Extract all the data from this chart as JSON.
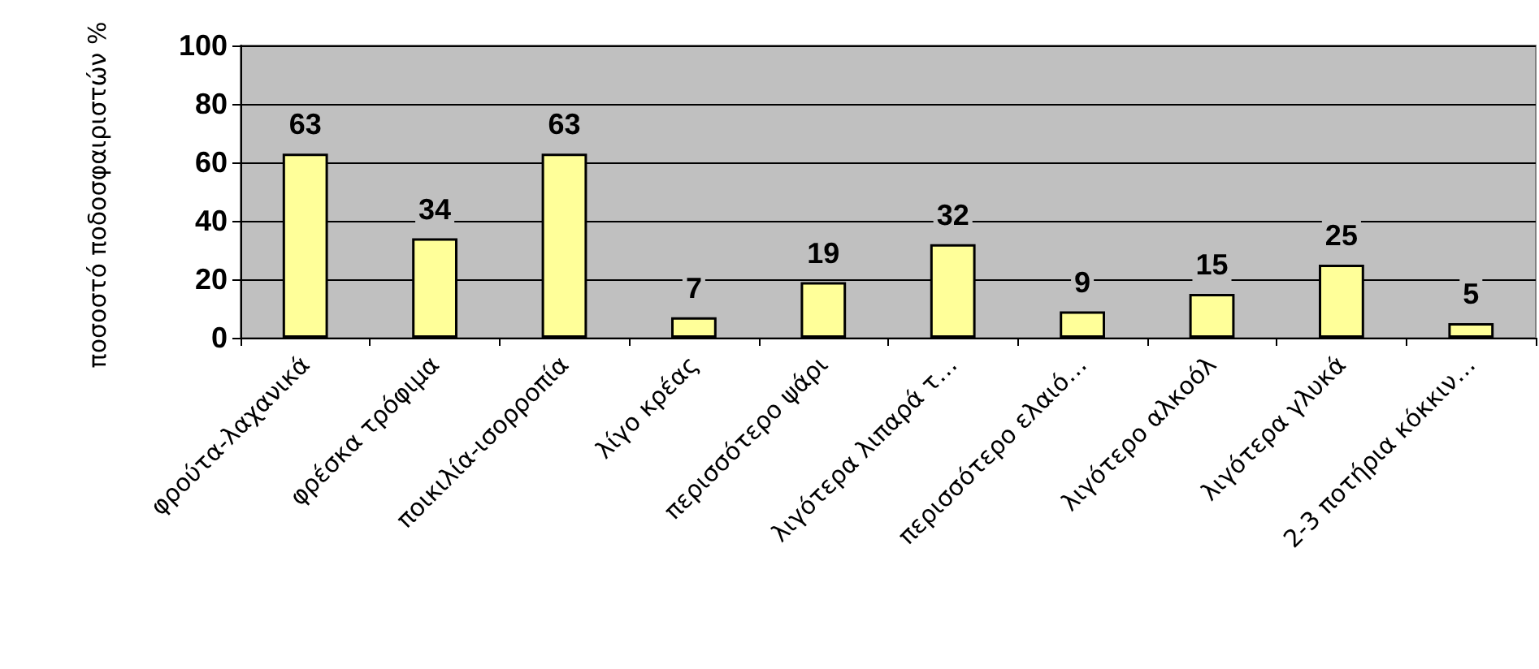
{
  "chart_data": {
    "type": "bar",
    "ylabel": "ποσοστό ποδοσφαιριστών %",
    "categories": [
      "φρούτα-λαχανικά",
      "φρέσκα τρόφιμα",
      "ποικιλία-ισορροπία",
      "λίγο κρέας",
      "περισσότερο ψάρι",
      "λιγότερα λιπαρά τ…",
      "περισσότερο ελαιό…",
      "λιγότερο αλκοόλ",
      "λιγότερα γλυκά",
      "2-3 ποτήρια κόκκιν…"
    ],
    "values": [
      63,
      34,
      63,
      7,
      19,
      32,
      9,
      15,
      25,
      5
    ],
    "color": "#ffff99",
    "ylim": [
      0,
      100
    ],
    "yticks": [
      0,
      20,
      40,
      60,
      80,
      100
    ],
    "grid": "y",
    "data_labels": true
  }
}
